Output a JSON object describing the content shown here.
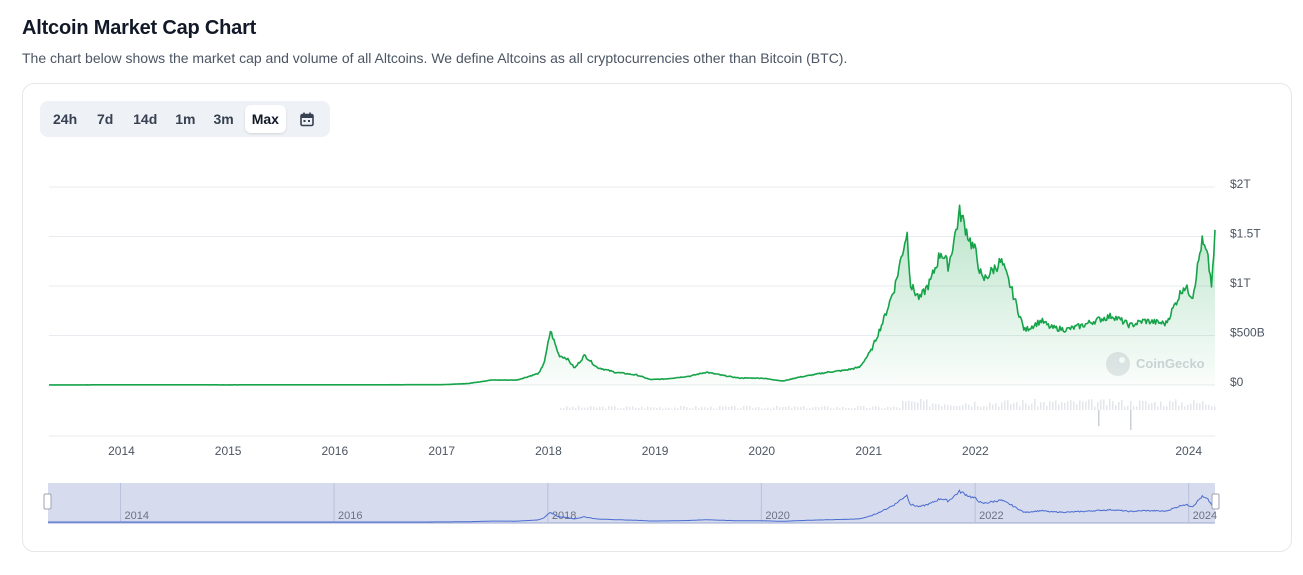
{
  "page": {
    "title": "Altcoin Market Cap Chart",
    "description": "The chart below shows the market cap and volume of all Altcoins. We define Altcoins as all cryptocurrencies other than Bitcoin (BTC)."
  },
  "range_tabs": {
    "items": [
      {
        "label": "24h",
        "active": false
      },
      {
        "label": "7d",
        "active": false
      },
      {
        "label": "14d",
        "active": false
      },
      {
        "label": "1m",
        "active": false
      },
      {
        "label": "3m",
        "active": false
      },
      {
        "label": "Max",
        "active": true
      }
    ],
    "calendar_icon": "calendar-icon"
  },
  "watermark": "CoinGecko",
  "colors": {
    "line": "#16a34a",
    "area_top": "#16a34a",
    "navigator_line": "#4a6bd0",
    "navigator_fill": "#d6dcee",
    "volume": "#d1d5db"
  },
  "chart_data": {
    "type": "area",
    "title": "",
    "xlabel": "",
    "ylabel": "",
    "ylim": [
      0,
      2000000000000
    ],
    "xlim": [
      "2013-04-28",
      "2024-03-31"
    ],
    "y_ticks": [
      "$0",
      "$500B",
      "$1T",
      "$1.5T",
      "$2T"
    ],
    "x_ticks": [
      "2014",
      "2015",
      "2016",
      "2017",
      "2018",
      "2019",
      "2020",
      "2021",
      "2022",
      "2024"
    ],
    "navigator_ticks": [
      "2014",
      "2016",
      "2018",
      "2020",
      "2022",
      "2024"
    ],
    "grid": true,
    "series": [
      {
        "x": [
          "2013-04-28",
          "2014-01-01",
          "2015-01-01",
          "2016-01-01",
          "2017-01-01",
          "2017-04-01",
          "2017-06-20",
          "2017-09-15",
          "2017-12-01",
          "2017-12-20",
          "2018-01-08",
          "2018-02-06",
          "2018-03-05",
          "2018-04-01",
          "2018-05-05",
          "2018-06-15",
          "2018-08-15",
          "2018-11-01",
          "2018-12-15",
          "2019-02-01",
          "2019-05-01",
          "2019-06-25",
          "2019-08-15",
          "2019-10-15",
          "2020-01-01",
          "2020-03-15",
          "2020-05-01",
          "2020-08-15",
          "2020-10-15",
          "2020-12-01",
          "2021-01-10",
          "2021-02-20",
          "2021-04-01",
          "2021-05-12",
          "2021-05-25",
          "2021-06-25",
          "2021-08-01",
          "2021-09-05",
          "2021-10-01",
          "2021-11-09",
          "2021-12-15",
          "2022-01-01",
          "2022-01-25",
          "2022-03-30",
          "2022-05-01",
          "2022-06-18",
          "2022-08-15",
          "2022-09-15",
          "2022-11-10",
          "2023-01-01",
          "2023-02-15",
          "2023-04-15",
          "2023-06-15",
          "2023-08-01",
          "2023-10-15",
          "2023-12-15",
          "2024-01-15",
          "2024-02-15",
          "2024-03-05",
          "2024-03-20",
          "2024-03-31"
        ],
        "y": [
          900000000,
          2000000000,
          1500000000,
          1800000000,
          3000000000,
          15000000000,
          50000000000,
          50000000000,
          120000000000,
          250000000000,
          550000000000,
          300000000000,
          270000000000,
          170000000000,
          300000000000,
          180000000000,
          130000000000,
          100000000000,
          55000000000,
          60000000000,
          90000000000,
          130000000000,
          100000000000,
          70000000000,
          70000000000,
          40000000000,
          75000000000,
          130000000000,
          150000000000,
          180000000000,
          350000000000,
          650000000000,
          1000000000000,
          1550000000000,
          1000000000000,
          870000000000,
          1050000000000,
          1350000000000,
          1200000000000,
          1750000000000,
          1450000000000,
          1350000000000,
          1050000000000,
          1250000000000,
          1000000000000,
          550000000000,
          650000000000,
          580000000000,
          560000000000,
          600000000000,
          650000000000,
          700000000000,
          600000000000,
          650000000000,
          620000000000,
          1000000000000,
          900000000000,
          1450000000000,
          1300000000000,
          1000000000000,
          1500000000000
        ]
      }
    ]
  }
}
